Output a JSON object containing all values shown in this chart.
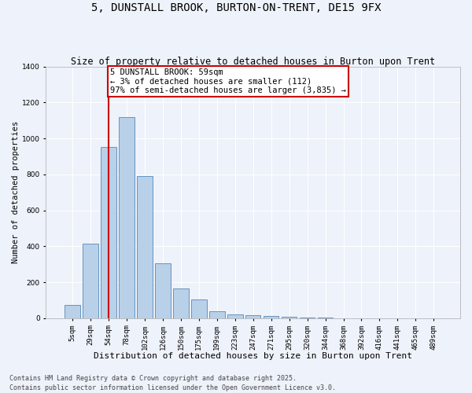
{
  "title": "5, DUNSTALL BROOK, BURTON-ON-TRENT, DE15 9FX",
  "subtitle": "Size of property relative to detached houses in Burton upon Trent",
  "xlabel": "Distribution of detached houses by size in Burton upon Trent",
  "ylabel": "Number of detached properties",
  "categories": [
    "5sqm",
    "29sqm",
    "54sqm",
    "78sqm",
    "102sqm",
    "126sqm",
    "150sqm",
    "175sqm",
    "199sqm",
    "223sqm",
    "247sqm",
    "271sqm",
    "295sqm",
    "320sqm",
    "344sqm",
    "368sqm",
    "392sqm",
    "416sqm",
    "441sqm",
    "465sqm",
    "489sqm"
  ],
  "values": [
    75,
    415,
    950,
    1120,
    790,
    305,
    165,
    105,
    37,
    22,
    18,
    12,
    8,
    4,
    2,
    1,
    1,
    0,
    0,
    0,
    0
  ],
  "bar_color": "#b8d0e8",
  "bar_edge_color": "#5588bb",
  "background_color": "#eef2fa",
  "grid_color": "#ffffff",
  "vline_x": 2,
  "vline_color": "#cc0000",
  "annotation_text": "5 DUNSTALL BROOK: 59sqm\n← 3% of detached houses are smaller (112)\n97% of semi-detached houses are larger (3,835) →",
  "annotation_box_color": "#ffffff",
  "annotation_box_edge": "#cc0000",
  "ylim": [
    0,
    1400
  ],
  "yticks": [
    0,
    200,
    400,
    600,
    800,
    1000,
    1200,
    1400
  ],
  "footer": "Contains HM Land Registry data © Crown copyright and database right 2025.\nContains public sector information licensed under the Open Government Licence v3.0.",
  "title_fontsize": 10,
  "subtitle_fontsize": 8.5,
  "xlabel_fontsize": 8,
  "ylabel_fontsize": 7.5,
  "tick_fontsize": 6.5,
  "annotation_fontsize": 7.5,
  "footer_fontsize": 6
}
